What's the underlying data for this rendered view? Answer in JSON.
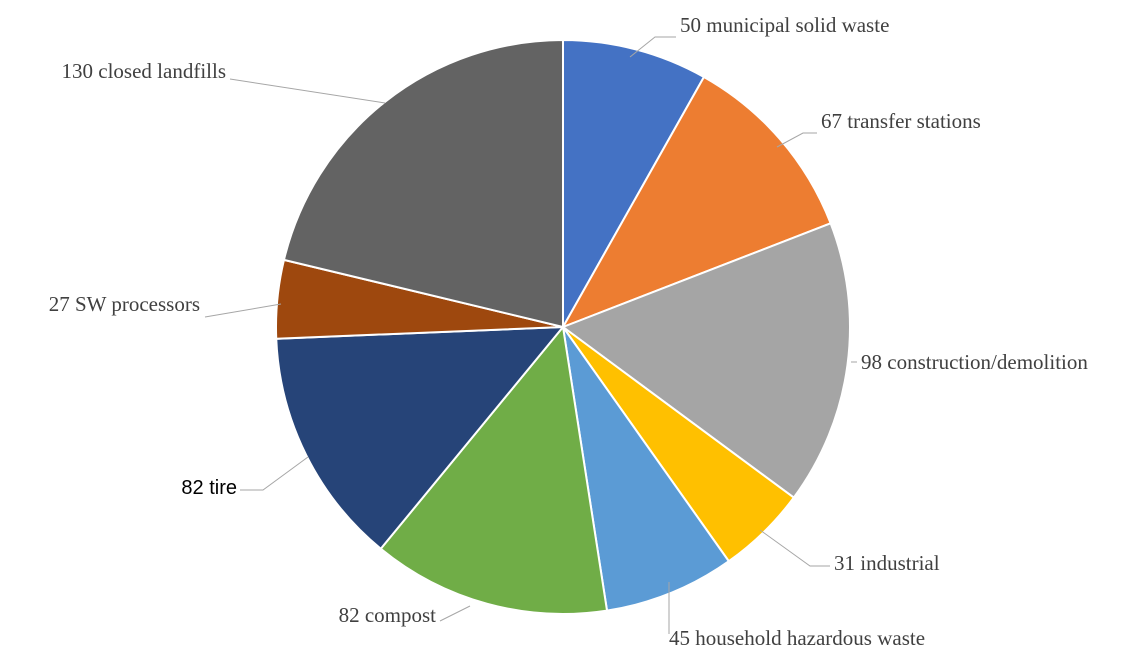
{
  "chart_data": {
    "type": "pie",
    "title": "",
    "slices": [
      {
        "label": "50 municipal solid waste",
        "value": 50,
        "color": "#4472c4"
      },
      {
        "label": "67 transfer stations",
        "value": 67,
        "color": "#ed7d31"
      },
      {
        "label": "98 construction/demolition",
        "value": 98,
        "color": "#a5a5a5"
      },
      {
        "label": "31 industrial",
        "value": 31,
        "color": "#ffc000"
      },
      {
        "label": "45 household hazardous waste",
        "value": 45,
        "color": "#5b9bd5"
      },
      {
        "label": "82 compost",
        "value": 82,
        "color": "#70ad47"
      },
      {
        "label": "82 tire",
        "value": 82,
        "color": "#264478"
      },
      {
        "label": "27 SW processors",
        "value": 27,
        "color": "#9e480e"
      },
      {
        "label": "130 closed landfills",
        "value": 130,
        "color": "#636363"
      }
    ],
    "start_angle_deg": 0,
    "direction": "clockwise",
    "legend": "none"
  }
}
